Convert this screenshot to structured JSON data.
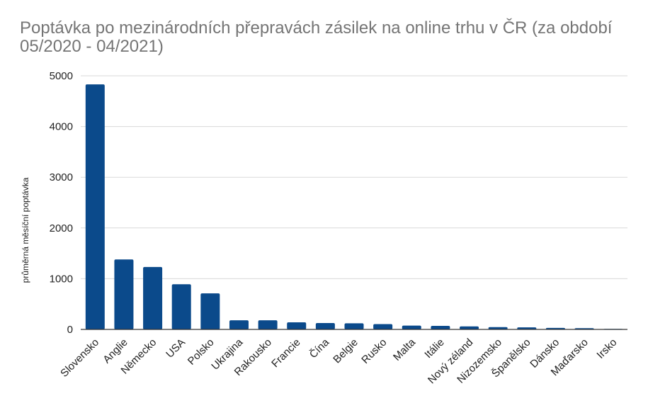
{
  "chart_data": {
    "type": "bar",
    "title": "Poptávka po mezinárodních přepravách zásilek na online trhu v ČR  (za období 05/2020 - 04/2021)",
    "xlabel": "",
    "ylabel": "průměrná měsíční poptávka",
    "ylim": [
      0,
      5000
    ],
    "yticks": [
      0,
      1000,
      2000,
      3000,
      4000,
      5000
    ],
    "grid": true,
    "categories": [
      "Slovensko",
      "Anglie",
      "Německo",
      "USA",
      "Polsko",
      "Ukrajina",
      "Rakousko",
      "Francie",
      "Čína",
      "Belgie",
      "Rusko",
      "Malta",
      "Itálie",
      "Nový zéland",
      "Nizozemsko",
      "Španělsko",
      "Dánsko",
      "Maďarsko",
      "Irsko"
    ],
    "values": [
      4830,
      1380,
      1230,
      890,
      710,
      180,
      180,
      140,
      125,
      120,
      105,
      75,
      70,
      60,
      45,
      40,
      30,
      25,
      10
    ],
    "colors": {
      "bar": "#0b4a8b",
      "grid": "#d9d9d9",
      "axis": "#333333"
    }
  }
}
